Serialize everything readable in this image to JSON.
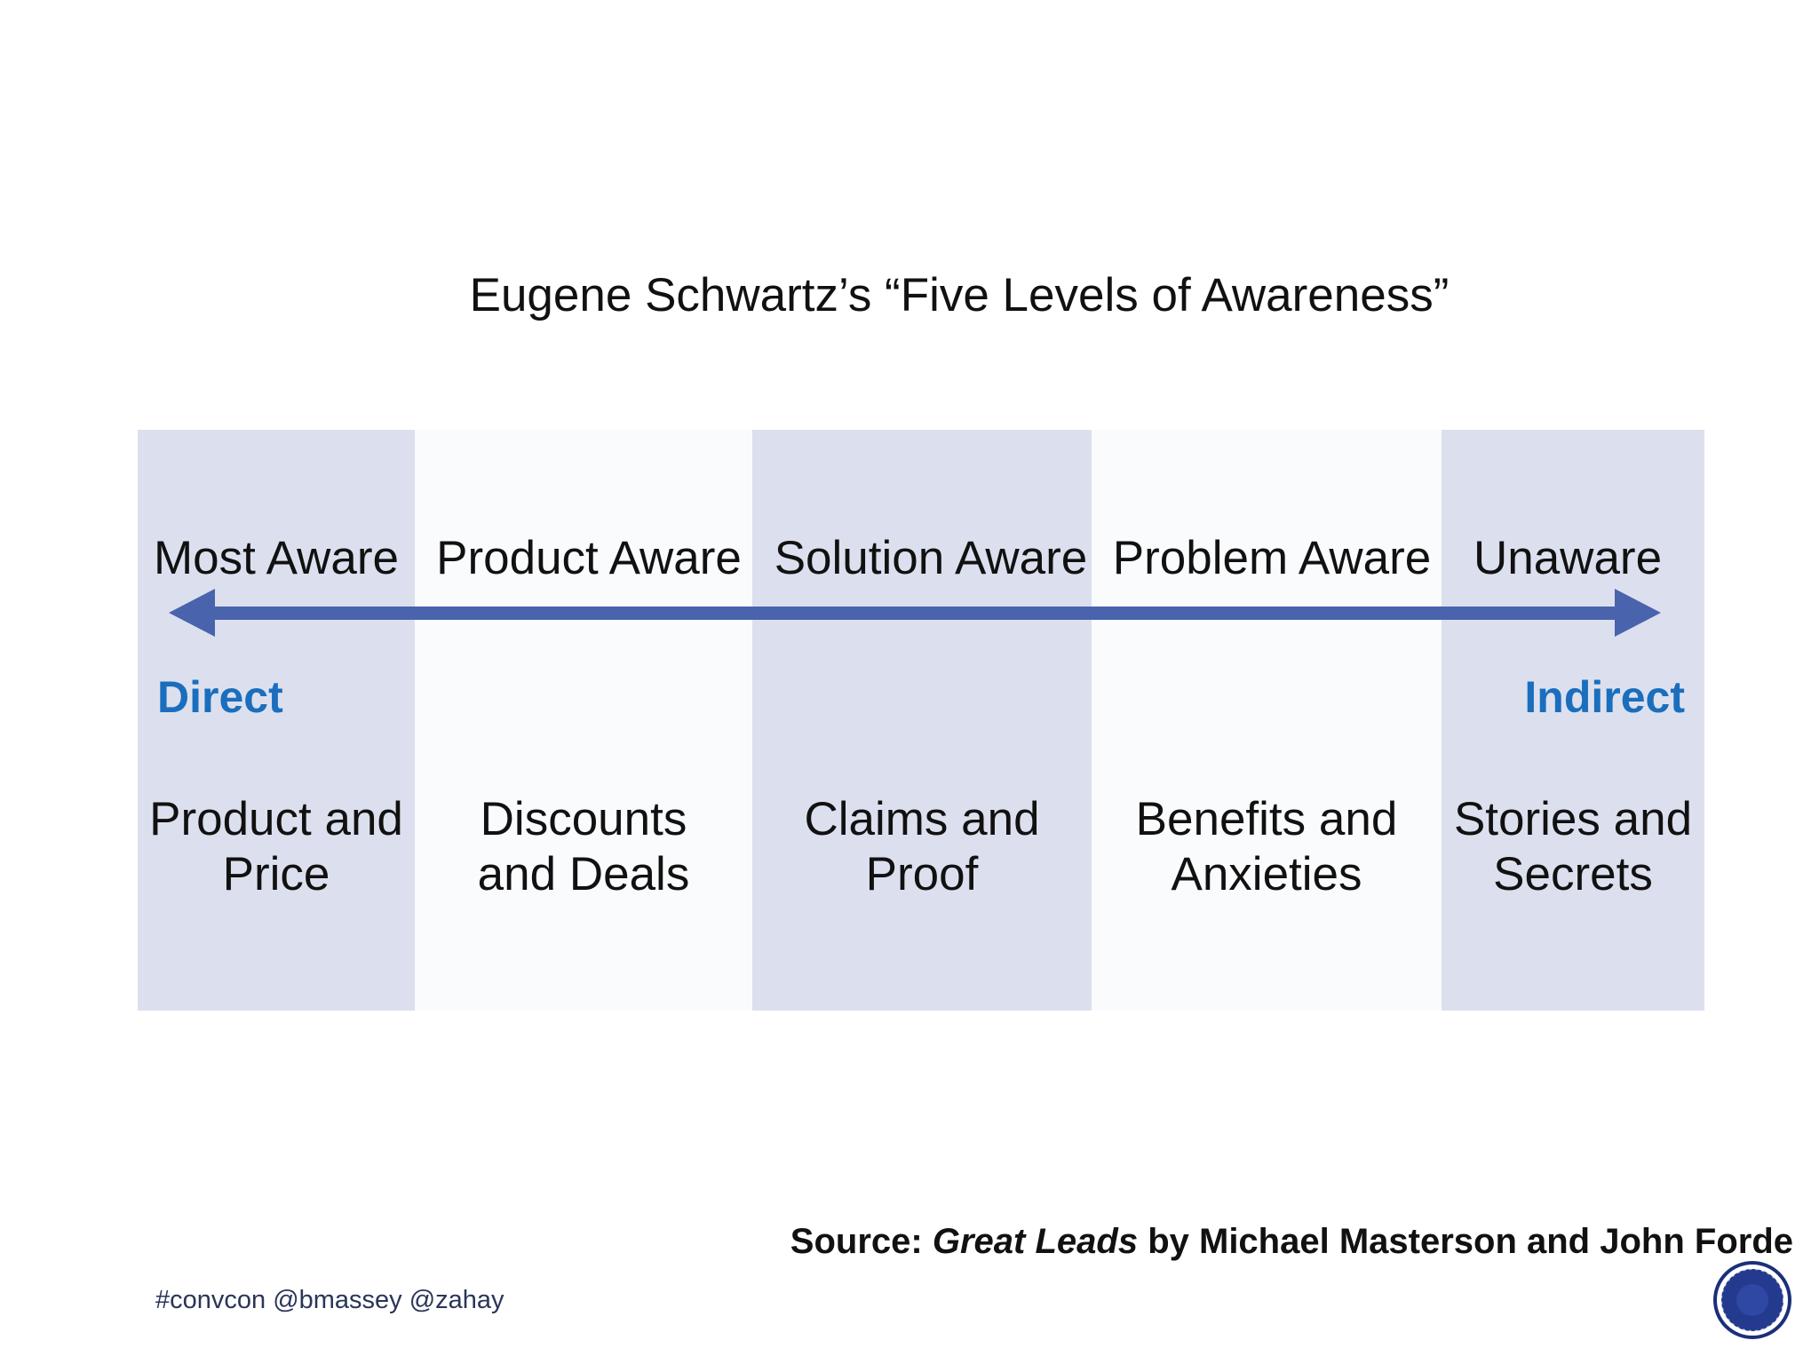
{
  "title": "Eugene Schwartz’s “Five Levels of Awareness”",
  "levels": [
    {
      "label": "Most Aware",
      "content_line1": "Product and",
      "content_line2": "Price"
    },
    {
      "label": "Product Aware",
      "content_line1": "Discounts",
      "content_line2": "and Deals"
    },
    {
      "label": "Solution Aware",
      "content_line1": "Claims and",
      "content_line2": "Proof"
    },
    {
      "label": "Problem Aware",
      "content_line1": "Benefits and",
      "content_line2": "Anxieties"
    },
    {
      "label": "Unaware",
      "content_line1": "Stories and",
      "content_line2": "Secrets"
    }
  ],
  "direction": {
    "left": "Direct",
    "right": "Indirect"
  },
  "source": {
    "prefix": "Source:",
    "book": "Great Leads",
    "suffix": "by Michael Masterson and John Forde"
  },
  "footer": {
    "hashtags": "#convcon @bmassey @zahay"
  },
  "colors": {
    "shaded_band": "#dce0ee",
    "arrow": "#4a63ad",
    "direction_text": "#1a6ebd"
  },
  "icons": {
    "logo": "circular-badge-logo-icon"
  }
}
